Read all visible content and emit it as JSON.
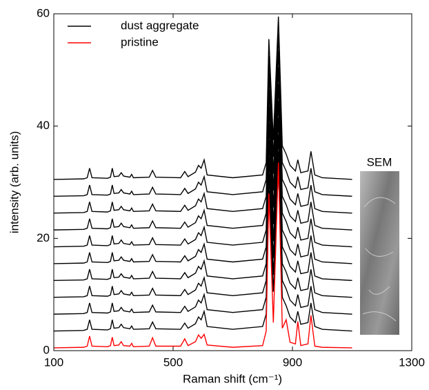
{
  "chart_data": {
    "type": "line",
    "xlabel": "Raman shift (cm⁻¹)",
    "ylabel": "intensity (arb. units)",
    "annotation": "SEM",
    "xlim": [
      100,
      1300
    ],
    "xticks": [
      100,
      500,
      900,
      1300
    ],
    "ylim": [
      0,
      60
    ],
    "yticks": [
      0,
      20,
      40,
      60
    ],
    "legend": "upper left",
    "x": [
      100,
      200,
      212,
      220,
      228,
      280,
      290,
      296,
      302,
      318,
      326,
      334,
      355,
      361,
      367,
      420,
      431,
      442,
      525,
      539,
      550,
      575,
      585,
      594,
      604,
      614,
      700,
      800,
      812,
      821,
      836,
      853,
      866,
      879,
      892,
      910,
      918,
      928,
      952,
      962,
      975,
      1000,
      1100
    ],
    "series": [
      {
        "name": "dust aggregate",
        "color": "#000000",
        "values": [
          [
            3.5,
            3.6,
            3.8,
            5.5,
            3.8,
            3.7,
            3.9,
            5.5,
            4,
            4.1,
            4.7,
            4.1,
            3.9,
            4.4,
            3.8,
            3.9,
            5.1,
            3.9,
            3.8,
            4.9,
            4,
            4.8,
            6,
            5.5,
            7,
            4.3,
            3.8,
            4.3,
            6.5,
            28.5,
            10.5,
            32.5,
            9.5,
            8,
            6,
            5,
            7,
            4.7,
            5,
            8.5,
            4.3,
            3.8,
            3.5
          ],
          [
            6.5,
            6.6,
            6.8,
            8.5,
            6.8,
            6.7,
            6.9,
            8.5,
            7,
            7.1,
            7.7,
            7.1,
            6.9,
            7.4,
            6.8,
            6.9,
            8.1,
            6.9,
            6.8,
            7.9,
            7,
            7.8,
            9,
            8.5,
            10,
            7.3,
            6.8,
            7.3,
            9.5,
            31.5,
            13.5,
            35.5,
            12.5,
            11,
            9,
            8,
            10,
            7.7,
            8,
            11.5,
            7.3,
            6.8,
            6.5
          ],
          [
            9.5,
            9.6,
            9.8,
            11.5,
            9.8,
            9.7,
            9.9,
            11.5,
            10,
            10.1,
            10.7,
            10.1,
            9.9,
            10.4,
            9.8,
            9.9,
            11.1,
            9.9,
            9.8,
            10.9,
            10,
            10.8,
            12,
            11.5,
            13,
            10.3,
            9.8,
            10.3,
            12.5,
            34.5,
            16.5,
            38.5,
            15.5,
            14,
            12,
            11,
            13,
            10.7,
            11,
            14.5,
            10.3,
            9.8,
            9.5
          ],
          [
            12.5,
            12.6,
            12.8,
            14.5,
            12.8,
            12.7,
            12.9,
            14.5,
            13,
            13.1,
            13.7,
            13.1,
            12.9,
            13.4,
            12.8,
            12.9,
            14.1,
            12.9,
            12.8,
            13.9,
            13,
            13.8,
            15,
            14.5,
            16,
            13.3,
            12.8,
            13.3,
            15.5,
            37.5,
            19.5,
            41.5,
            18.5,
            17,
            15,
            14,
            16,
            13.7,
            14,
            17.5,
            13.3,
            12.8,
            12.5
          ],
          [
            15.5,
            15.6,
            15.8,
            17.5,
            15.8,
            15.7,
            15.9,
            17.5,
            16,
            16.1,
            16.7,
            16.1,
            15.9,
            16.4,
            15.8,
            15.9,
            17.1,
            15.9,
            15.8,
            16.9,
            16,
            16.8,
            18,
            17.5,
            19,
            16.3,
            15.8,
            16.3,
            18.5,
            40.5,
            22.5,
            44.5,
            21.5,
            20,
            18,
            17,
            19,
            16.7,
            17,
            20.5,
            16.3,
            15.8,
            15.5
          ],
          [
            18.5,
            18.6,
            18.8,
            20.5,
            18.8,
            18.7,
            18.9,
            20.5,
            19,
            19.1,
            19.7,
            19.1,
            18.9,
            19.4,
            18.8,
            18.9,
            20.1,
            18.9,
            18.8,
            19.9,
            19,
            19.8,
            21,
            20.5,
            22,
            19.3,
            18.8,
            19.3,
            21.5,
            43.5,
            25.5,
            47.5,
            24.5,
            23,
            21,
            20,
            22,
            19.7,
            20,
            23.5,
            19.3,
            18.8,
            18.5
          ],
          [
            21.5,
            21.6,
            21.8,
            23.5,
            21.8,
            21.7,
            21.9,
            23.5,
            22,
            22.1,
            22.7,
            22.1,
            21.9,
            22.4,
            21.8,
            21.9,
            23.1,
            21.9,
            21.8,
            22.9,
            22,
            22.8,
            24,
            23.5,
            25,
            22.3,
            21.8,
            22.3,
            24.5,
            46.5,
            28.5,
            50.5,
            27.5,
            26,
            24,
            23,
            25,
            22.7,
            23,
            26.5,
            22.3,
            21.8,
            21.5
          ],
          [
            24.5,
            24.6,
            24.8,
            26.5,
            24.8,
            24.7,
            24.9,
            26.5,
            25,
            25.1,
            25.7,
            25.1,
            24.9,
            25.4,
            24.8,
            24.9,
            26.1,
            24.9,
            24.8,
            25.9,
            25,
            25.8,
            27,
            26.5,
            28,
            25.3,
            24.8,
            25.3,
            27.5,
            49.5,
            31.5,
            53.5,
            30.5,
            29,
            27,
            26,
            28,
            25.7,
            26,
            29.5,
            25.3,
            24.8,
            24.5
          ],
          [
            27.5,
            27.6,
            27.8,
            29.5,
            27.8,
            27.7,
            27.9,
            29.5,
            28,
            28.1,
            28.7,
            28.1,
            27.9,
            28.4,
            27.8,
            27.9,
            29.1,
            27.9,
            27.8,
            28.9,
            28,
            28.8,
            30,
            29.5,
            31,
            28.3,
            27.8,
            28.3,
            30.5,
            52.5,
            34.5,
            56.5,
            33.5,
            32,
            30,
            29,
            31,
            28.7,
            29,
            32.5,
            28.3,
            27.8,
            27.5
          ],
          [
            30.5,
            30.6,
            30.8,
            32.5,
            30.8,
            30.7,
            30.9,
            32.5,
            31,
            31.1,
            31.7,
            31.1,
            30.9,
            31.4,
            30.8,
            30.9,
            32.1,
            30.9,
            30.8,
            31.9,
            31,
            31.8,
            33,
            32.5,
            34,
            31.3,
            30.8,
            31.3,
            33.5,
            55.5,
            37.5,
            59.5,
            36.5,
            35,
            33,
            32,
            34,
            31.7,
            32,
            35.5,
            31.3,
            30.8,
            30.5
          ]
        ]
      },
      {
        "name": "pristine",
        "color": "#ff0000",
        "values": [
          0.5,
          0.6,
          0.8,
          2.6,
          0.8,
          0.7,
          0.9,
          2.4,
          0.9,
          1,
          1.6,
          0.9,
          0.8,
          1.3,
          0.7,
          0.8,
          2.3,
          0.8,
          0.8,
          2.1,
          0.9,
          1.6,
          2.8,
          2.2,
          2.9,
          1,
          0.6,
          0.9,
          3.5,
          28,
          5,
          33.5,
          4,
          5.5,
          1.5,
          1.2,
          5.2,
          0.9,
          1.2,
          6.3,
          0.8,
          0.6,
          0.5
        ]
      }
    ]
  }
}
